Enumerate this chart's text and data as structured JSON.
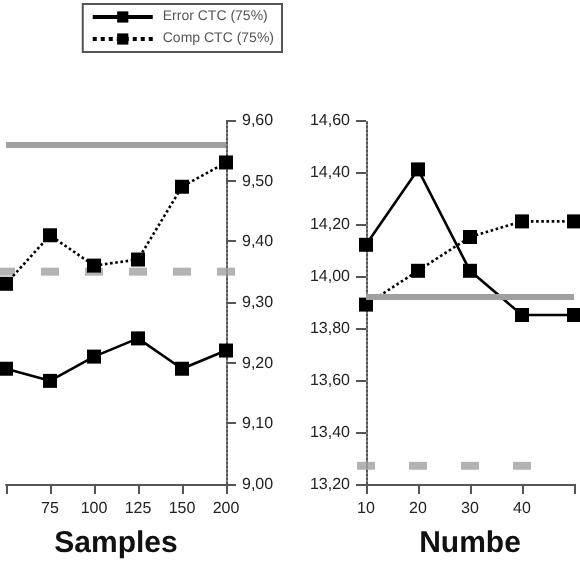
{
  "chart_data": [
    {
      "type": "line",
      "xlabel": "Samples",
      "categories": [
        null,
        "75",
        "100",
        "125",
        "150",
        "200"
      ],
      "y2lim": [
        9.0,
        9.6
      ],
      "y2ticks": [
        {
          "value": 9.0,
          "label": "9,00"
        },
        {
          "value": 9.1,
          "label": "9,10"
        },
        {
          "value": 9.2,
          "label": "9,20"
        },
        {
          "value": 9.3,
          "label": "9,30"
        },
        {
          "value": 9.4,
          "label": "9,40"
        },
        {
          "value": 9.5,
          "label": "9,50"
        },
        {
          "value": 9.6,
          "label": "9,60"
        }
      ],
      "legend": "top right",
      "grid": false,
      "marker": "square",
      "series": [
        {
          "name": "Error CTC (75%)",
          "color": "#000000",
          "axis": "y2",
          "line_style": "solid",
          "values": [
            9.19,
            9.17,
            9.21,
            9.24,
            9.19,
            9.22
          ]
        },
        {
          "name": "Comp CTC (75%)",
          "color": "#000000",
          "axis": "y2",
          "line_style": "dotted",
          "values": [
            9.33,
            9.41,
            9.36,
            9.37,
            9.49,
            9.53
          ]
        },
        {
          "type": "scatter",
          "color": "#a0a0a0",
          "axis": "y2",
          "values": [
            9.35,
            9.35,
            9.35,
            9.35,
            9.35,
            9.35
          ]
        }
      ],
      "ref_lines": [
        {
          "axis": "y2",
          "value": 9.56,
          "color": "#a0a0a0"
        }
      ]
    },
    {
      "type": "line",
      "xlabel": "Numbe",
      "categories": [
        "10",
        "20",
        "30",
        "40",
        null
      ],
      "ylim": [
        13.2,
        14.6
      ],
      "yticks": [
        {
          "value": 13.2,
          "label": "13,20"
        },
        {
          "value": 13.4,
          "label": "13,40"
        },
        {
          "value": 13.6,
          "label": "13,60"
        },
        {
          "value": 13.8,
          "label": "13,80"
        },
        {
          "value": 14.0,
          "label": "14,00"
        },
        {
          "value": 14.2,
          "label": "14,20"
        },
        {
          "value": 14.4,
          "label": "14,40"
        },
        {
          "value": 14.6,
          "label": "14,60"
        }
      ],
      "grid": false,
      "marker": "square",
      "series": [
        {
          "color": "#000000",
          "line_style": "solid",
          "values": [
            14.12,
            14.41,
            14.02,
            13.85,
            13.85
          ]
        },
        {
          "color": "#000000",
          "line_style": "dotted",
          "values": [
            13.89,
            14.02,
            14.15,
            14.21,
            14.21
          ]
        },
        {
          "type": "scatter",
          "color": "#a0a0a0",
          "values": [
            13.27,
            13.27,
            13.27,
            13.27,
            null
          ]
        }
      ],
      "ref_lines": [
        {
          "axis": "y",
          "value": 13.92,
          "color": "#a0a0a0"
        }
      ]
    }
  ]
}
